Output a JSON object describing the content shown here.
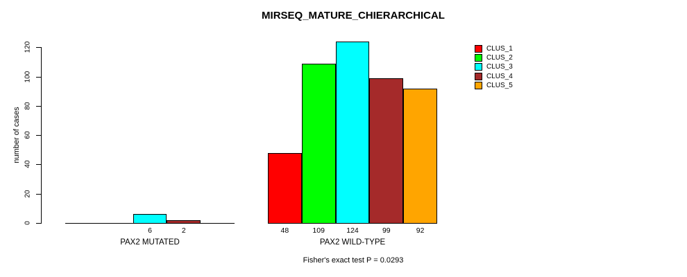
{
  "title": "MIRSEQ_MATURE_CHIERARCHICAL",
  "footer_note": "Fisher's exact test P = 0.0293",
  "y_axis": {
    "label": "number of cases",
    "ticks": [
      0,
      20,
      40,
      60,
      80,
      100,
      120
    ]
  },
  "legend": {
    "position": "top-right",
    "entries": [
      {
        "label": "CLUS_1",
        "color": "#FF0000"
      },
      {
        "label": "CLUS_2",
        "color": "#00FF00"
      },
      {
        "label": "CLUS_3",
        "color": "#00FFFF"
      },
      {
        "label": "CLUS_4",
        "color": "#A52A2A"
      },
      {
        "label": "CLUS_5",
        "color": "#FFA500"
      }
    ]
  },
  "chart_data": {
    "type": "bar",
    "title": "MIRSEQ_MATURE_CHIERARCHICAL",
    "xlabel": "",
    "ylabel": "number of cases",
    "ylim": [
      0,
      120
    ],
    "grid": false,
    "legend_position": "top-right",
    "series": [
      "CLUS_1",
      "CLUS_2",
      "CLUS_3",
      "CLUS_4",
      "CLUS_5"
    ],
    "series_colors": [
      "#FF0000",
      "#00FF00",
      "#00FFFF",
      "#A52A2A",
      "#FFA500"
    ],
    "groups": [
      {
        "label": "PAX2 MUTATED",
        "values": [
          0,
          0,
          6,
          2,
          0
        ],
        "bar_labels": [
          "",
          "",
          "6",
          "2",
          ""
        ]
      },
      {
        "label": "PAX2 WILD-TYPE",
        "values": [
          48,
          109,
          124,
          99,
          92
        ],
        "bar_labels": [
          "48",
          "109",
          "124",
          "99",
          "92"
        ]
      }
    ],
    "annotation": "Fisher's exact test P = 0.0293"
  }
}
